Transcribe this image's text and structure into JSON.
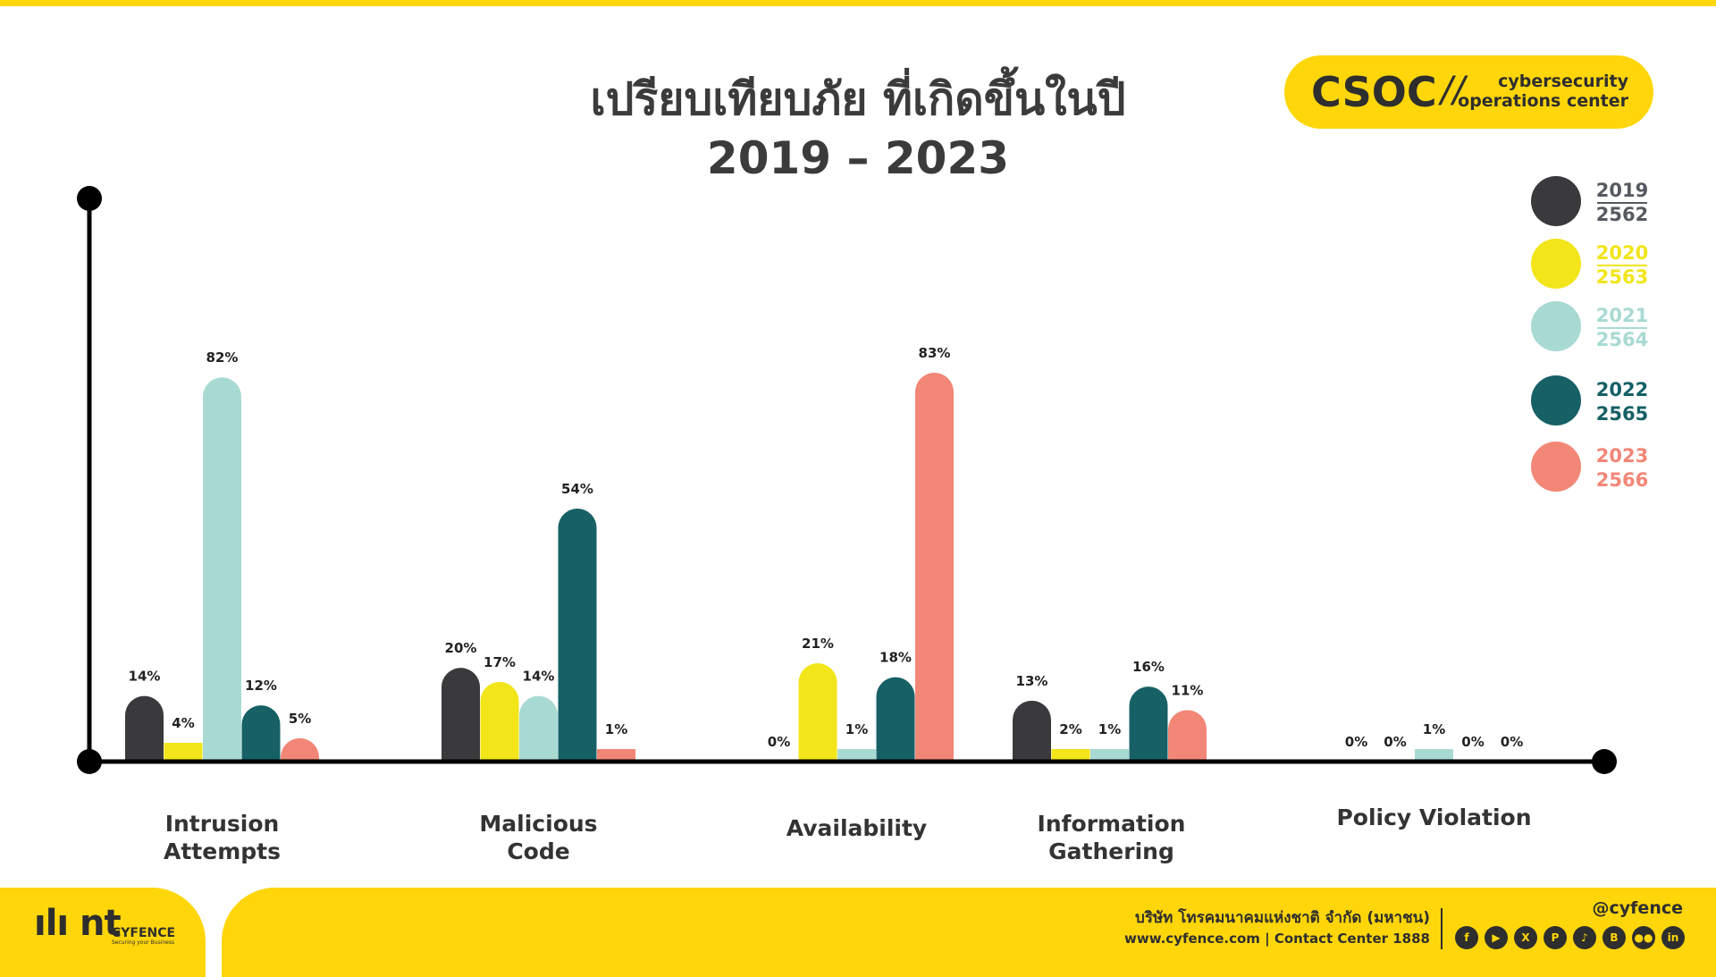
{
  "header": {
    "title_line1": "เปรียบเทียบภัย ที่เกิดขึ้นในปี",
    "title_line2": "2019 – 2023"
  },
  "badge": {
    "name": "CSOC",
    "slash": "//",
    "sub_line1": "cybersecurity",
    "sub_line2": "operations center"
  },
  "colors": {
    "accent": "#FFD60A",
    "axis": "#000000",
    "text_dark": "#2e2e2e"
  },
  "chart_data": {
    "type": "bar",
    "title": "เปรียบเทียบภัย ที่เกิดขึ้นในปี 2019 – 2023",
    "categories": [
      [
        "Intrusion",
        "Attempts"
      ],
      [
        "Malicious",
        "Code"
      ],
      [
        "Availability"
      ],
      [
        "Information",
        "Gathering"
      ],
      [
        "Policy Violation"
      ]
    ],
    "series": [
      {
        "name": "2019",
        "name_alt": "2562",
        "color": "#3A3A3C",
        "values": [
          14,
          20,
          0,
          13,
          0
        ],
        "labels": [
          "14%",
          "20%",
          "0%",
          "13%",
          "0%"
        ]
      },
      {
        "name": "2020",
        "name_alt": "2563",
        "color": "#F2E51A",
        "values": [
          4,
          17,
          21,
          2,
          0
        ],
        "labels": [
          "4%",
          "17%",
          "21%",
          "2%",
          "0%"
        ]
      },
      {
        "name": "2021",
        "name_alt": "2564",
        "color": "#A8DAD3",
        "values": [
          82,
          14,
          1,
          1,
          1
        ],
        "labels": [
          "82%",
          "14%",
          "1%",
          "1%",
          "1%"
        ]
      },
      {
        "name": "2022",
        "name_alt": "2565",
        "color": "#166066",
        "values": [
          12,
          54,
          18,
          16,
          0
        ],
        "labels": [
          "12%",
          "54%",
          "18%",
          "16%",
          "0%"
        ]
      },
      {
        "name": "2023",
        "name_alt": "2566",
        "color": "#F28677",
        "values": [
          5,
          1,
          83,
          11,
          0
        ],
        "labels": [
          "5%",
          "1%",
          "83%",
          "11%",
          "0%"
        ]
      }
    ],
    "ylim": [
      0,
      100
    ],
    "grid": false,
    "legend_position": "right"
  },
  "footer": {
    "logo_mark": "ılı nt",
    "logo_text": "CYFENCE",
    "logo_tagline": "Securing your Business",
    "company": "บริษัท โทรคมนาคมแห่งชาติ จำกัด (มหาชน)",
    "contact": "www.cyfence.com | Contact Center 1888",
    "handle": "@cyfence",
    "social_icons": [
      {
        "name": "facebook-icon",
        "glyph": "f"
      },
      {
        "name": "youtube-icon",
        "glyph": "▶"
      },
      {
        "name": "x-icon",
        "glyph": "X"
      },
      {
        "name": "pinterest-icon",
        "glyph": "P"
      },
      {
        "name": "tiktok-icon",
        "glyph": "♪"
      },
      {
        "name": "blockdit-icon",
        "glyph": "B"
      },
      {
        "name": "medium-icon",
        "glyph": "●●"
      },
      {
        "name": "linkedin-icon",
        "glyph": "in"
      }
    ]
  }
}
